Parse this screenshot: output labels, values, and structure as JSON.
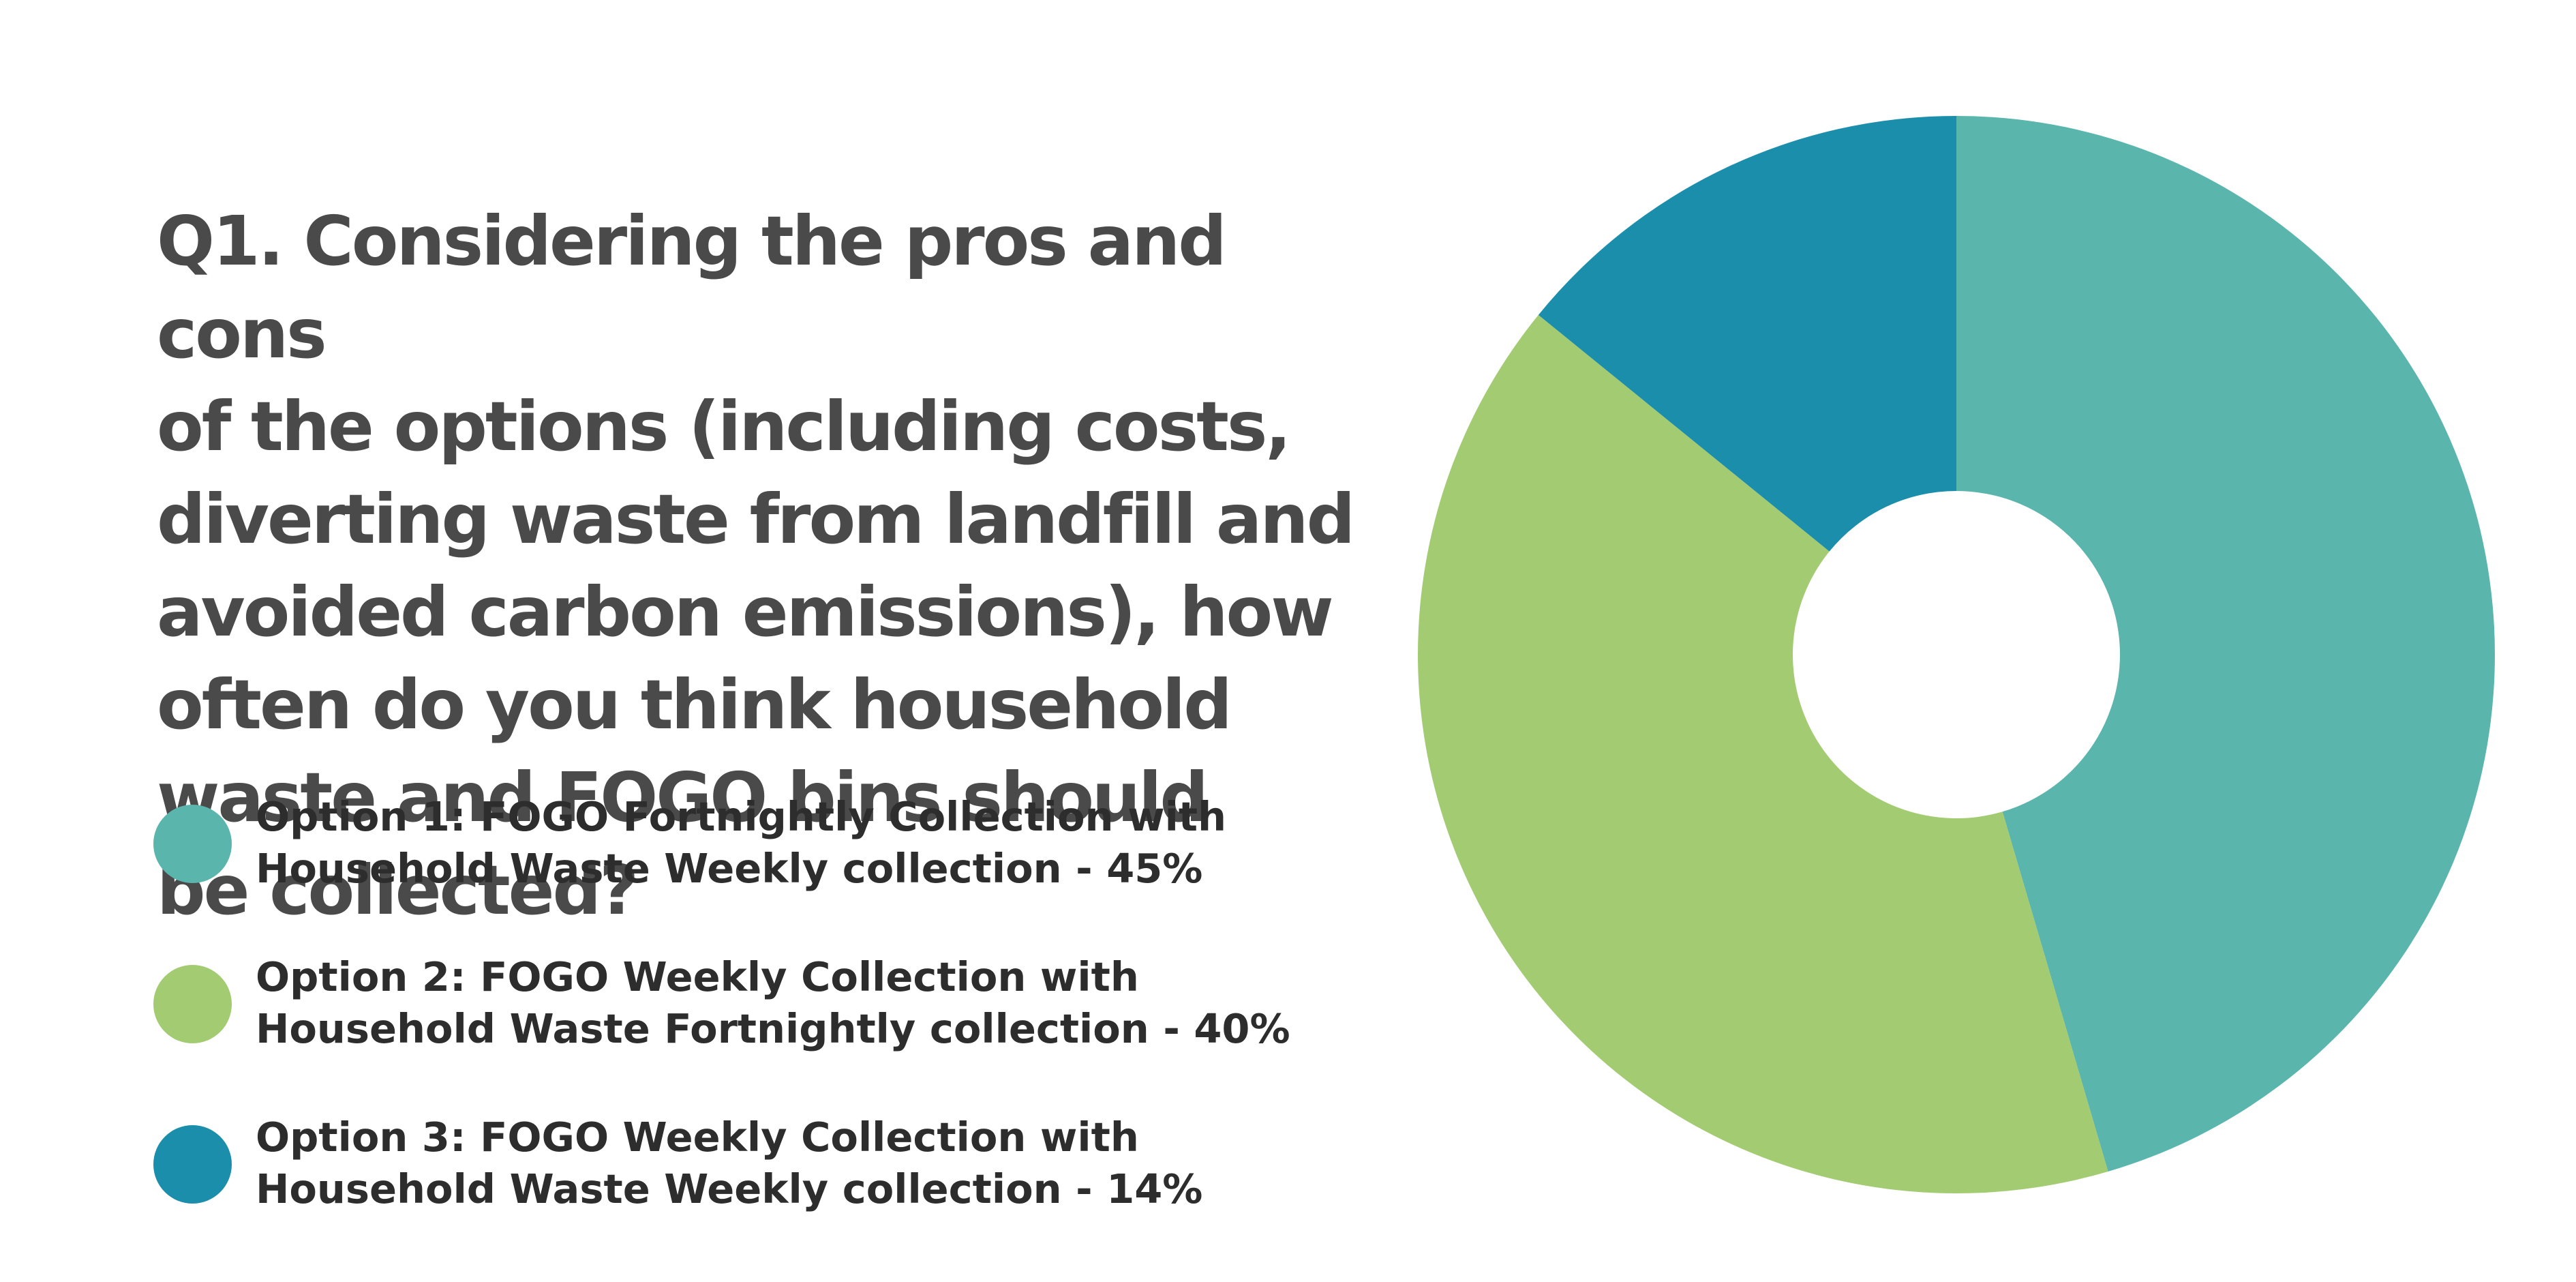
{
  "question": {
    "lines": [
      "Q1. Considering the pros and cons",
      "of the options (including costs,",
      "diverting waste from landfill and",
      "avoided carbon emissions), how",
      "often do you think household",
      "waste and FOGO bins should",
      "be collected?"
    ]
  },
  "legend": [
    {
      "line1": "Option 1: FOGO Fortnightly Collection with",
      "line2": "Household Waste Weekly collection - 45%",
      "color": "#5ab5ad"
    },
    {
      "line1": "Option 2: FOGO Weekly Collection with",
      "line2": "Household Waste Fortnightly collection - 40%",
      "color": "#a3cb72"
    },
    {
      "line1": "Option 3: FOGO Weekly Collection with",
      "line2": "Household Waste Weekly collection - 14%",
      "color": "#1a8eab"
    }
  ],
  "chart_data": {
    "type": "pie",
    "donut": true,
    "title": "",
    "categories": [
      "Option 1",
      "Option 2",
      "Option 3"
    ],
    "values": [
      45,
      40,
      14
    ],
    "colors": [
      "#5ab5ad",
      "#a3cb72",
      "#1a8eab"
    ],
    "start": "12 o'clock",
    "direction": "clockwise",
    "legend_placement": "left"
  }
}
